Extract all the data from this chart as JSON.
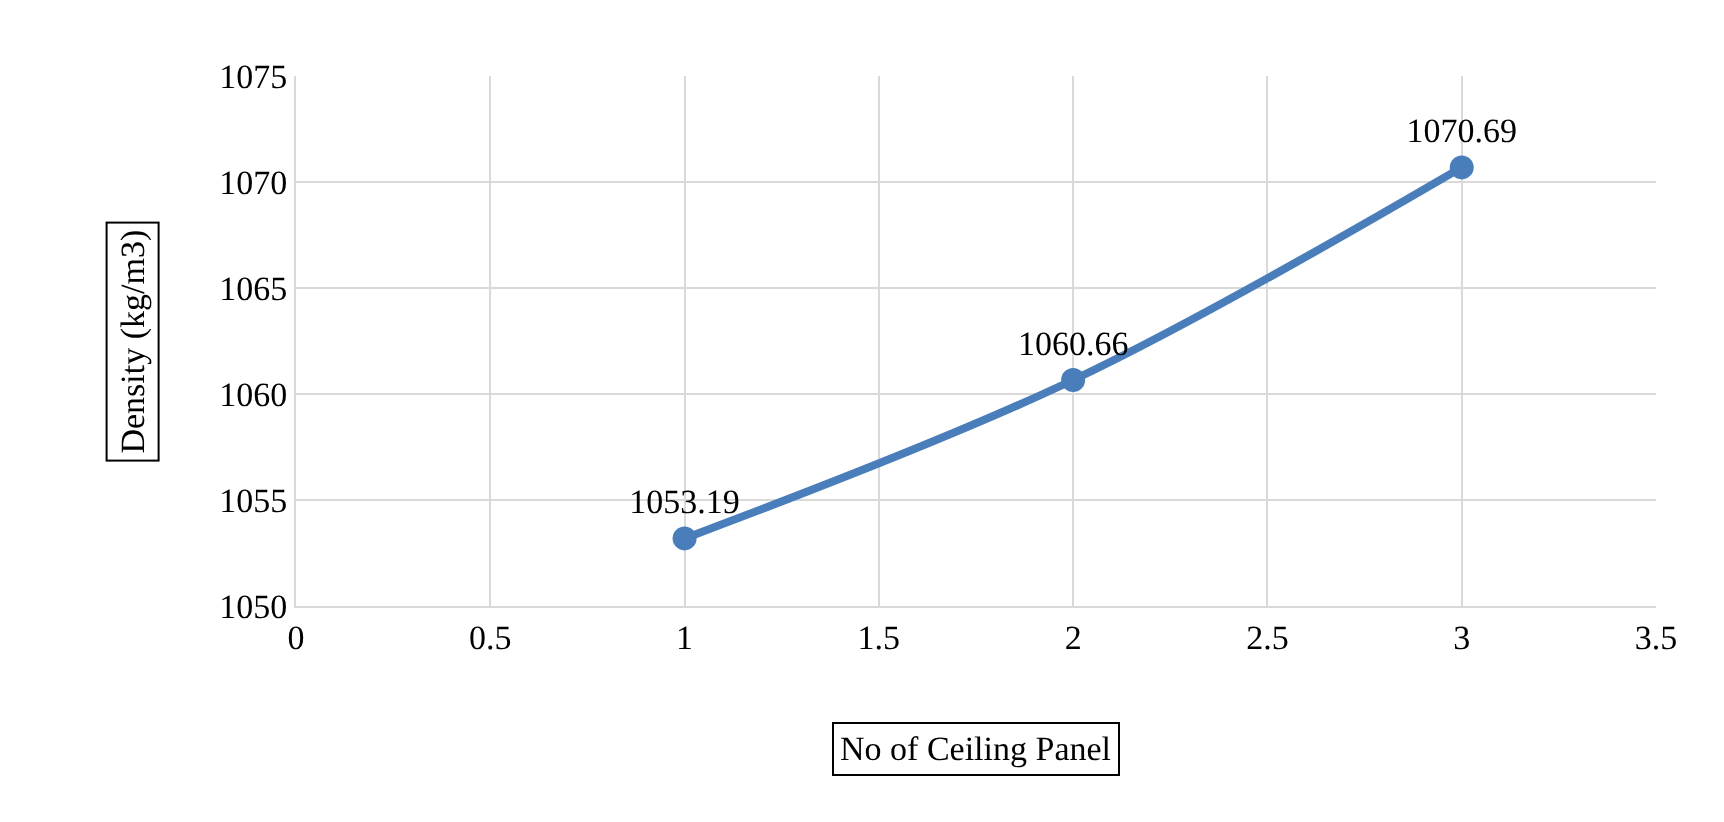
{
  "chart_data": {
    "type": "line",
    "xlabel": "No of Ceiling Panel",
    "ylabel": "Density (kg/m3)",
    "x": [
      1,
      2,
      3
    ],
    "series": [
      {
        "color": "#4a7ebb",
        "values": [
          1053.19,
          1060.66,
          1070.69
        ]
      }
    ],
    "xlim": [
      0,
      3.5
    ],
    "xticks": [
      0,
      0.5,
      1,
      1.5,
      2,
      2.5,
      3,
      3.5
    ],
    "ylim": [
      1050,
      1075
    ],
    "yticks": [
      1050,
      1055,
      1060,
      1065,
      1070,
      1075
    ],
    "grid": true,
    "marker": "circle",
    "line_style": "solid",
    "data_labels": true,
    "legend": false
  }
}
